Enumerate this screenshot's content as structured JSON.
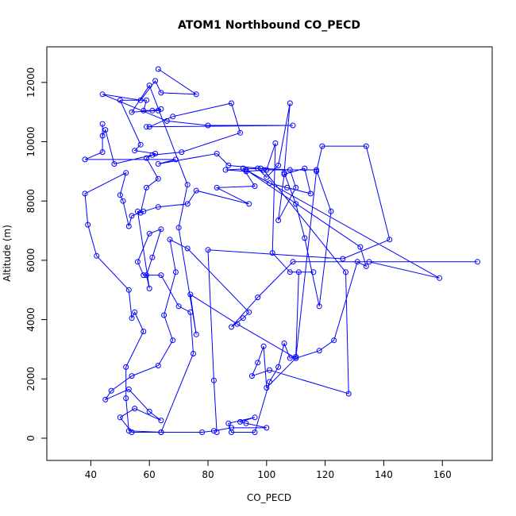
{
  "chart_data": {
    "type": "line",
    "title": "ATOM1 Northbound CO_PECD",
    "xlabel": "CO_PECD",
    "ylabel": "Altitude (m)",
    "xlim": [
      25,
      177
    ],
    "ylim": [
      -750,
      13200
    ],
    "xticks": [
      40,
      60,
      80,
      100,
      120,
      140,
      160
    ],
    "yticks": [
      0,
      2000,
      4000,
      6000,
      8000,
      10000,
      12000
    ],
    "grid": false,
    "legend": "none",
    "series": [
      {
        "color": "#0000ff",
        "marker": "open-circle",
        "points": [
          [
            63,
            12450
          ],
          [
            76,
            11600
          ],
          [
            64,
            11650
          ],
          [
            62,
            12050
          ],
          [
            57,
            11400
          ],
          [
            44,
            11600
          ],
          [
            66,
            10700
          ],
          [
            80,
            10550
          ],
          [
            109,
            10550
          ],
          [
            59,
            10500
          ],
          [
            60,
            10500
          ],
          [
            68,
            10850
          ],
          [
            88,
            11300
          ],
          [
            91,
            10300
          ],
          [
            71,
            9650
          ],
          [
            61,
            9550
          ],
          [
            48,
            9250
          ],
          [
            45,
            10400
          ],
          [
            44,
            10200
          ],
          [
            44,
            10600
          ],
          [
            44,
            9650
          ],
          [
            38,
            9400
          ],
          [
            69,
            9400
          ],
          [
            63,
            9250
          ],
          [
            83,
            9600
          ],
          [
            87,
            9200
          ],
          [
            98,
            9100
          ],
          [
            108,
            9050
          ],
          [
            110,
            8450
          ],
          [
            104,
            7350
          ],
          [
            106,
            8900
          ],
          [
            113,
            9100
          ],
          [
            115,
            8250
          ],
          [
            107,
            8450
          ],
          [
            101,
            8600
          ],
          [
            92,
            9100
          ],
          [
            96,
            8500
          ],
          [
            83,
            8450
          ],
          [
            94,
            7900
          ],
          [
            76,
            8350
          ],
          [
            73,
            7900
          ],
          [
            63,
            7800
          ],
          [
            58,
            7650
          ],
          [
            54,
            7500
          ],
          [
            53,
            7150
          ],
          [
            51,
            8000
          ],
          [
            50,
            8200
          ],
          [
            52,
            8950
          ],
          [
            38,
            8250
          ],
          [
            39,
            7200
          ],
          [
            42,
            6150
          ],
          [
            53,
            5000
          ],
          [
            54,
            4050
          ],
          [
            55,
            4250
          ],
          [
            58,
            3600
          ],
          [
            52,
            2400
          ],
          [
            52,
            1350
          ],
          [
            53,
            250
          ],
          [
            64,
            200
          ],
          [
            78,
            200
          ],
          [
            82,
            250
          ],
          [
            88,
            350
          ],
          [
            100,
            350
          ],
          [
            93,
            500
          ],
          [
            91,
            550
          ],
          [
            96,
            700
          ],
          [
            87,
            500
          ],
          [
            88,
            200
          ],
          [
            96,
            200
          ],
          [
            101,
            1900
          ],
          [
            104,
            2400
          ],
          [
            106,
            3200
          ],
          [
            108,
            2700
          ],
          [
            110,
            2750
          ],
          [
            111,
            5600
          ],
          [
            116,
            5600
          ],
          [
            108,
            5600
          ],
          [
            102,
            6250
          ],
          [
            103,
            9950
          ],
          [
            100,
            9050
          ],
          [
            93,
            9000
          ],
          [
            86,
            9050
          ],
          [
            97,
            9100
          ],
          [
            100,
            8800
          ],
          [
            104,
            9200
          ],
          [
            108,
            11300
          ],
          [
            106,
            8950
          ],
          [
            110,
            7900
          ],
          [
            113,
            6750
          ],
          [
            118,
            4450
          ],
          [
            122,
            7650
          ],
          [
            117,
            9050
          ],
          [
            99,
            9050
          ],
          [
            127,
            5600
          ],
          [
            128,
            1500
          ],
          [
            101,
            2300
          ],
          [
            95,
            2100
          ],
          [
            97,
            2550
          ],
          [
            99,
            3100
          ],
          [
            100,
            1700
          ],
          [
            110,
            2700
          ],
          [
            118,
            2950
          ],
          [
            123,
            3300
          ],
          [
            131,
            5950
          ],
          [
            134,
            5800
          ],
          [
            132,
            6450
          ],
          [
            93,
            9050
          ],
          [
            159,
            5400
          ],
          [
            135,
            5950
          ],
          [
            172,
            5950
          ],
          [
            109,
            5950
          ],
          [
            97,
            4750
          ],
          [
            88,
            3750
          ],
          [
            92,
            4050
          ],
          [
            94,
            4250
          ],
          [
            73,
            6400
          ],
          [
            67,
            6700
          ],
          [
            69,
            5600
          ],
          [
            65,
            4150
          ],
          [
            68,
            3300
          ],
          [
            63,
            2450
          ],
          [
            54,
            2100
          ],
          [
            47,
            1600
          ],
          [
            45,
            1300
          ],
          [
            53,
            1650
          ],
          [
            60,
            900
          ],
          [
            64,
            600
          ],
          [
            55,
            1000
          ],
          [
            50,
            700
          ],
          [
            54,
            200
          ],
          [
            64,
            200
          ],
          [
            75,
            2850
          ],
          [
            74,
            4250
          ],
          [
            70,
            4450
          ],
          [
            64,
            5500
          ],
          [
            58,
            5500
          ],
          [
            56,
            5950
          ],
          [
            60,
            6900
          ],
          [
            64,
            7050
          ],
          [
            61,
            6100
          ],
          [
            59,
            5500
          ],
          [
            60,
            5050
          ],
          [
            56,
            7650
          ],
          [
            57,
            7600
          ],
          [
            59,
            8450
          ],
          [
            63,
            8750
          ],
          [
            59,
            9450
          ],
          [
            62,
            9600
          ],
          [
            55,
            9700
          ],
          [
            57,
            9900
          ],
          [
            50,
            11400
          ],
          [
            59,
            11400
          ],
          [
            58,
            11050
          ],
          [
            61,
            11050
          ],
          [
            64,
            11100
          ],
          [
            63,
            11050
          ],
          [
            54,
            11000
          ],
          [
            60,
            11900
          ],
          [
            73,
            8550
          ],
          [
            70,
            7100
          ],
          [
            76,
            3500
          ],
          [
            74,
            4850
          ],
          [
            90,
            3850
          ],
          [
            110,
            2700
          ],
          [
            117,
            9000
          ],
          [
            119,
            9850
          ],
          [
            134,
            9850
          ],
          [
            142,
            6700
          ],
          [
            126,
            6050
          ],
          [
            80,
            6350
          ],
          [
            82,
            1950
          ],
          [
            83,
            200
          ]
        ]
      }
    ]
  }
}
